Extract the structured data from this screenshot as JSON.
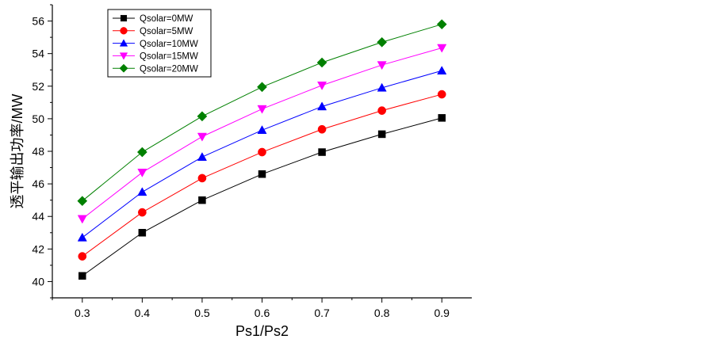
{
  "chart_data": {
    "type": "line",
    "title": "",
    "xlabel": "Ps1/Ps2",
    "ylabel": "透平输出功率/MW",
    "x": [
      0.3,
      0.4,
      0.5,
      0.6,
      0.7,
      0.8,
      0.9
    ],
    "x_tick_labels": [
      "0.3",
      "0.4",
      "0.5",
      "0.6",
      "0.7",
      "0.8",
      "0.9"
    ],
    "xlim": [
      0.25,
      0.95
    ],
    "ylim": [
      39,
      57
    ],
    "y_ticks": [
      40,
      42,
      44,
      46,
      48,
      50,
      52,
      54,
      56
    ],
    "y_tick_labels": [
      "40",
      "42",
      "44",
      "46",
      "48",
      "50",
      "52",
      "54",
      "56"
    ],
    "grid": false,
    "legend_position": "top-left",
    "series": [
      {
        "name": "Qsolar=0MW",
        "color": "#000000",
        "marker": "square",
        "values": [
          40.35,
          43.0,
          45.0,
          46.6,
          47.95,
          49.05,
          50.05
        ]
      },
      {
        "name": "Qsolar=5MW",
        "color": "#ff0000",
        "marker": "circle",
        "values": [
          41.55,
          44.25,
          46.35,
          47.95,
          49.35,
          50.5,
          51.5
        ]
      },
      {
        "name": "Qsolar=10MW",
        "color": "#0000ff",
        "marker": "triangle-up",
        "values": [
          42.7,
          45.5,
          47.65,
          49.3,
          50.75,
          51.9,
          52.95
        ]
      },
      {
        "name": "Qsolar=15MW",
        "color": "#ff00ff",
        "marker": "triangle-down",
        "values": [
          43.85,
          46.7,
          48.9,
          50.6,
          52.05,
          53.3,
          54.35
        ]
      },
      {
        "name": "Qsolar=20MW",
        "color": "#008000",
        "marker": "diamond",
        "values": [
          44.95,
          47.95,
          50.15,
          51.95,
          53.45,
          54.7,
          55.8
        ]
      }
    ]
  }
}
